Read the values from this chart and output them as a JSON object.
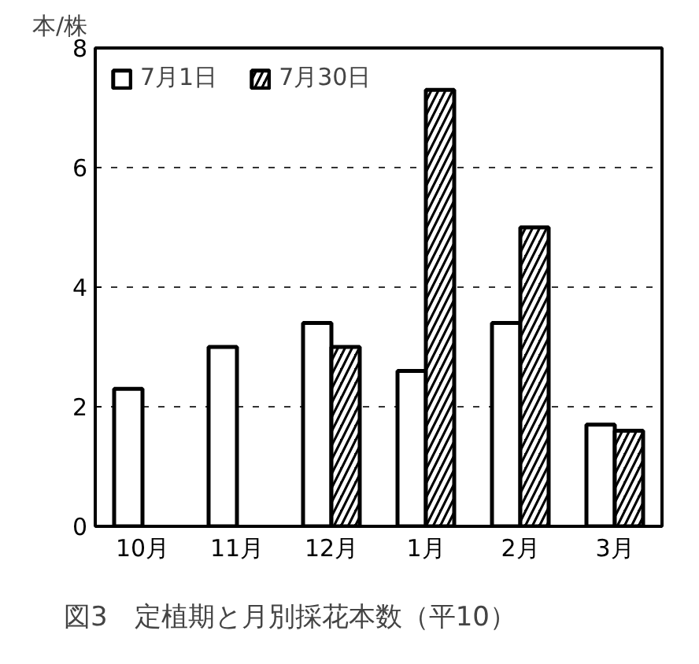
{
  "chart_data": {
    "type": "bar",
    "title": "図3　定植期と月別採花本数（平10）",
    "ylabel": "本/株",
    "categories": [
      "10月",
      "11月",
      "12月",
      "1月",
      "2月",
      "3月"
    ],
    "series": [
      {
        "name": "7月1日",
        "color": "#ffffff",
        "values": [
          2.3,
          3.0,
          3.4,
          2.6,
          3.4,
          1.7
        ]
      },
      {
        "name": "7月30日",
        "color": "#000000",
        "values": [
          null,
          null,
          3.0,
          7.3,
          5.0,
          1.6
        ]
      }
    ],
    "ylim": [
      0,
      8
    ],
    "yticks": [
      0,
      2,
      4,
      6,
      8
    ],
    "grid": "y",
    "legend": "top left"
  }
}
